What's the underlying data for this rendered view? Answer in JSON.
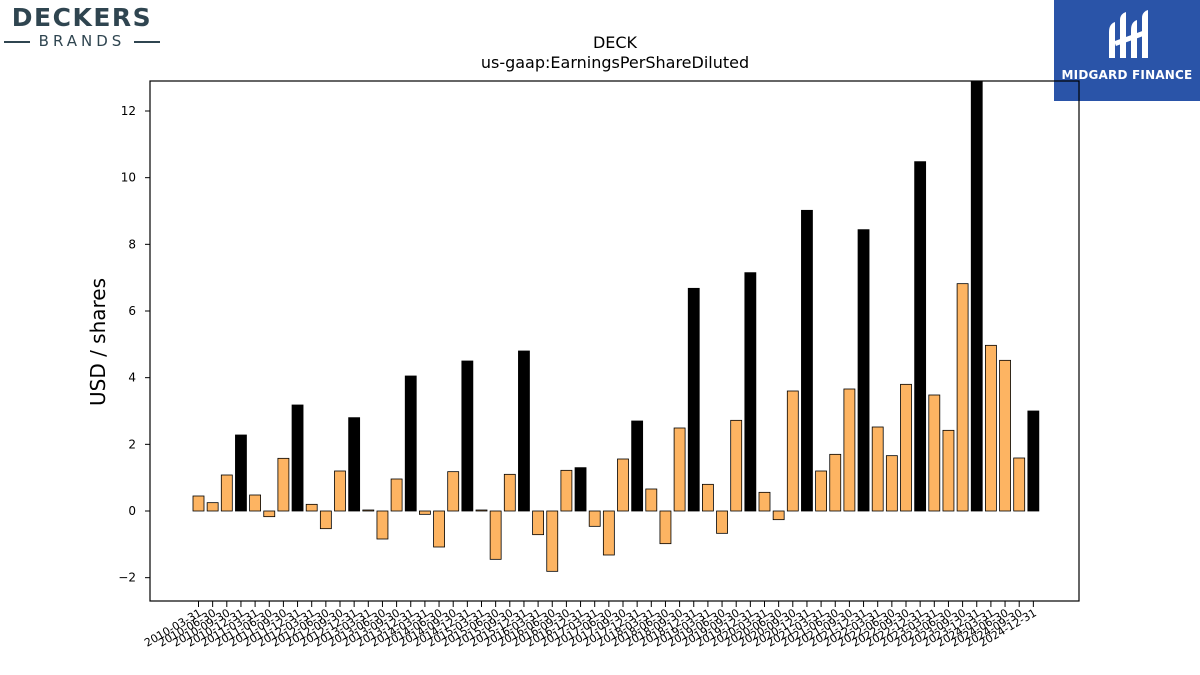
{
  "branding": {
    "company_logo_top": "DECKERS",
    "company_logo_bottom": "BRANDS",
    "provider_logo_text": "MIDGARD FINANCE"
  },
  "colors": {
    "quarterly_bar": "#fdb462",
    "annual_bar": "#000000",
    "logo_bg": "#2a54a8",
    "logo_text_dark": "#2f4550"
  },
  "chart_data": {
    "type": "bar",
    "title": "DECK",
    "subtitle": "us-gaap:EarningsPerShareDiluted",
    "xlabel": "",
    "ylabel": "USD / shares",
    "ylim": [
      -2.7,
      12.9
    ],
    "yticks": [
      -2,
      0,
      2,
      4,
      6,
      8,
      10,
      12
    ],
    "grid": false,
    "categories": [
      "2010-03-31",
      "2010-06-30",
      "2010-09-30",
      "2010-12-31",
      "2011-03-31",
      "2011-06-30",
      "2011-09-30",
      "2011-12-31",
      "2012-03-31",
      "2012-06-30",
      "2012-09-30",
      "2012-12-31",
      "2013-03-31",
      "2013-06-30",
      "2013-09-30",
      "2013-12-31",
      "2014-03-31",
      "2014-06-30",
      "2014-09-30",
      "2014-12-31",
      "2015-03-31",
      "2015-06-30",
      "2015-09-30",
      "2015-12-31",
      "2016-03-31",
      "2016-06-30",
      "2016-09-30",
      "2016-12-31",
      "2017-03-31",
      "2017-06-30",
      "2017-09-30",
      "2017-12-31",
      "2018-03-31",
      "2018-06-30",
      "2018-09-30",
      "2018-12-31",
      "2019-03-31",
      "2019-06-30",
      "2019-09-30",
      "2019-12-31",
      "2020-03-31",
      "2020-06-30",
      "2020-09-30",
      "2020-12-31",
      "2021-03-31",
      "2021-06-30",
      "2021-09-30",
      "2021-12-31",
      "2022-03-31",
      "2022-06-30",
      "2022-09-30",
      "2022-12-31",
      "2023-03-31",
      "2023-06-30",
      "2023-09-30",
      "2023-12-31",
      "2024-03-31",
      "2024-06-30",
      "2024-09-30",
      "2024-12-31"
    ],
    "values": [
      0.45,
      0.25,
      1.08,
      2.28,
      0.48,
      -0.17,
      1.58,
      3.18,
      0.2,
      -0.53,
      1.2,
      2.8,
      0.03,
      -0.84,
      0.96,
      4.05,
      -0.1,
      -1.08,
      1.18,
      4.5,
      0.03,
      -1.45,
      1.1,
      4.8,
      -0.71,
      -1.81,
      1.22,
      1.3,
      -0.46,
      -1.32,
      1.56,
      2.7,
      0.66,
      -0.98,
      2.49,
      6.68,
      0.8,
      -0.67,
      2.72,
      7.15,
      0.56,
      -0.26,
      3.6,
      9.02,
      1.2,
      1.7,
      3.66,
      8.44,
      2.52,
      1.66,
      3.8,
      10.48,
      3.48,
      2.42,
      6.82,
      12.9,
      4.97,
      4.52,
      1.59,
      3.0
    ],
    "annual_flags": [
      0,
      0,
      0,
      1,
      0,
      0,
      0,
      1,
      0,
      0,
      0,
      1,
      0,
      0,
      0,
      1,
      0,
      0,
      0,
      1,
      0,
      0,
      0,
      1,
      0,
      0,
      0,
      1,
      0,
      0,
      0,
      1,
      0,
      0,
      0,
      1,
      0,
      0,
      0,
      1,
      0,
      0,
      0,
      1,
      0,
      0,
      0,
      1,
      0,
      0,
      0,
      1,
      0,
      0,
      0,
      1,
      0,
      0,
      0,
      1
    ]
  }
}
